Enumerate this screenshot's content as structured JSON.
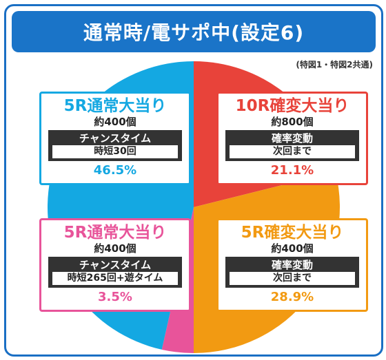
{
  "title": "通常時/電サポ中(設定6)",
  "note": "(特図1・特図2共通)",
  "chart_data": {
    "type": "pie",
    "title": "通常時/電サポ中(設定6)",
    "start_angle_deg": 0,
    "direction": "clockwise",
    "slices": [
      {
        "label": "10R確変大当り",
        "balls": "約800個",
        "mode": "確率変動",
        "detail": "次回まで",
        "percent_label": "21.1%",
        "value": 21.1,
        "color": "#e8433a"
      },
      {
        "label": "5R確変大当り",
        "balls": "約400個",
        "mode": "確率変動",
        "detail": "次回まで",
        "percent_label": "28.9%",
        "value": 28.9,
        "color": "#f29a12"
      },
      {
        "label": "5R通常大当り",
        "balls": "約400個",
        "mode": "チャンスタイム",
        "detail": "時短265回+遊タイム",
        "percent_label": "3.5%",
        "value": 3.5,
        "color": "#e8549a"
      },
      {
        "label": "5R通常大当り",
        "balls": "約400個",
        "mode": "チャンスタイム",
        "detail": "時短30回",
        "percent_label": "46.5%",
        "value": 46.5,
        "color": "#14a8e2"
      }
    ]
  }
}
